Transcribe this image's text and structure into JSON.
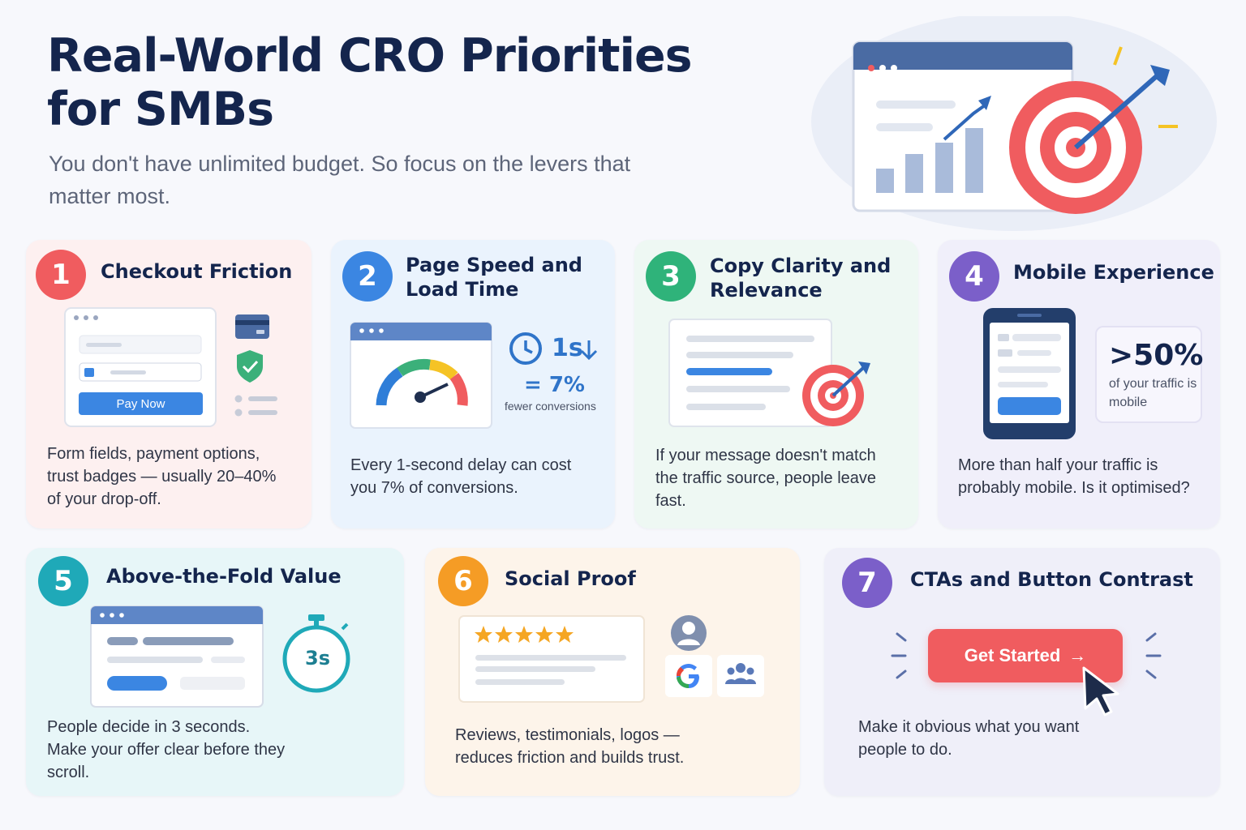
{
  "header": {
    "title": "Real-World CRO Priorities for SMBs",
    "subtitle": "You don't have unlimited budget. So focus on the levers that matter most."
  },
  "colors": {
    "navy": "#14254d",
    "red": "#f05c5f",
    "blue": "#3b86e2",
    "green": "#2fb37a",
    "purple": "#7b5fc9",
    "teal": "#1fa9b8",
    "orange": "#f59c25"
  },
  "cards": [
    {
      "number": "1",
      "title": "Checkout Friction",
      "description": "Form fields, payment options, trust badges — usually 20–40% of your drop-off.",
      "button_label": "Pay Now"
    },
    {
      "number": "2",
      "title": "Page Speed and Load Time",
      "description": "Every 1-second delay can cost you 7% of conversions.",
      "stat_delay": "1s",
      "stat_percent": "= 7%",
      "stat_caption": "fewer conversions"
    },
    {
      "number": "3",
      "title": "Copy Clarity and Relevance",
      "description": "If your message doesn't match the traffic source, people leave fast."
    },
    {
      "number": "4",
      "title": "Mobile Experience",
      "description": "More than half your traffic is probably mobile. Is it optimised?",
      "stat_value": ">50%",
      "stat_caption": "of your traffic is mobile"
    },
    {
      "number": "5",
      "title": "Above-the-Fold Value",
      "description": "People decide in 3 seconds. Make your offer clear before they scroll.",
      "timer_label": "3s"
    },
    {
      "number": "6",
      "title": "Social Proof",
      "description": "Reviews, testimonials, logos — reduces friction and builds trust.",
      "rating_stars": 5
    },
    {
      "number": "7",
      "title": "CTAs and Button Contrast",
      "description": "Make it obvious what you want people to do.",
      "button_label": "Get Started"
    }
  ]
}
